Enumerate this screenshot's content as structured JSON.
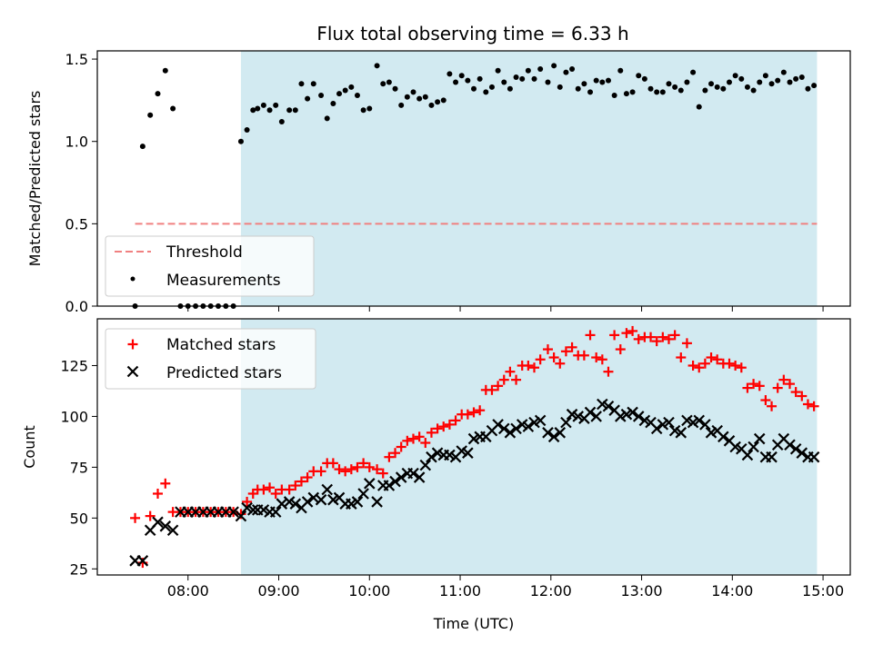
{
  "title": "Flux total observing time = 6.33 h",
  "colors": {
    "shade": "#add8e6",
    "threshold": "#f08080",
    "measurements": "#000000",
    "matched": "#ff0000",
    "predicted": "#000000"
  },
  "chart_data": [
    {
      "type": "scatter",
      "ylabel": "Matched/Predicted stars",
      "xlabel": "",
      "xlim": [
        "07:00",
        "15:18"
      ],
      "ylim": [
        0,
        1.55
      ],
      "x_ticks": [
        "08:00",
        "09:00",
        "10:00",
        "11:00",
        "12:00",
        "13:00",
        "14:00",
        "15:00"
      ],
      "y_ticks": [
        "0.0",
        "0.5",
        "1.0",
        "1.5"
      ],
      "shaded_interval": [
        "08:35",
        "14:56"
      ],
      "legend": {
        "placement": "lower-left",
        "threshold_label": "Threshold",
        "measurements_label": "Measurements"
      },
      "threshold": {
        "name": "Threshold",
        "y": 0.5,
        "x_range": [
          "07:25",
          "14:56"
        ]
      },
      "series": [
        {
          "name": "Measurements",
          "x": [
            "07:25",
            "07:30",
            "07:35",
            "07:40",
            "07:45",
            "07:50",
            "07:55",
            "08:00",
            "08:05",
            "08:10",
            "08:15",
            "08:20",
            "08:25",
            "08:30",
            "08:35",
            "08:39",
            "08:43",
            "08:46",
            "08:50",
            "08:54",
            "08:58",
            "09:02",
            "09:07",
            "09:11",
            "09:15",
            "09:19",
            "09:23",
            "09:28",
            "09:32",
            "09:36",
            "09:40",
            "09:44",
            "09:48",
            "09:52",
            "09:56",
            "10:00",
            "10:05",
            "10:09",
            "10:13",
            "10:17",
            "10:21",
            "10:25",
            "10:29",
            "10:33",
            "10:37",
            "10:41",
            "10:45",
            "10:49",
            "10:53",
            "10:57",
            "11:01",
            "11:05",
            "11:09",
            "11:13",
            "11:17",
            "11:21",
            "11:25",
            "11:29",
            "11:33",
            "11:37",
            "11:41",
            "11:45",
            "11:49",
            "11:53",
            "11:58",
            "12:02",
            "12:06",
            "12:10",
            "12:14",
            "12:18",
            "12:22",
            "12:26",
            "12:30",
            "12:34",
            "12:38",
            "12:42",
            "12:46",
            "12:50",
            "12:54",
            "12:58",
            "13:02",
            "13:06",
            "13:10",
            "13:14",
            "13:18",
            "13:22",
            "13:26",
            "13:30",
            "13:34",
            "13:38",
            "13:42",
            "13:46",
            "13:50",
            "13:54",
            "13:58",
            "14:02",
            "14:06",
            "14:10",
            "14:14",
            "14:18",
            "14:22",
            "14:26",
            "14:30",
            "14:34",
            "14:38",
            "14:42",
            "14:46",
            "14:50",
            "14:54"
          ],
          "y": [
            0.0,
            0.97,
            1.16,
            1.29,
            1.43,
            1.2,
            0.0,
            0.0,
            0.0,
            0.0,
            0.0,
            0.0,
            0.0,
            0.0,
            1.0,
            1.07,
            1.19,
            1.2,
            1.22,
            1.19,
            1.22,
            1.12,
            1.19,
            1.19,
            1.35,
            1.26,
            1.35,
            1.28,
            1.14,
            1.23,
            1.29,
            1.31,
            1.33,
            1.28,
            1.19,
            1.2,
            1.46,
            1.35,
            1.36,
            1.32,
            1.22,
            1.27,
            1.3,
            1.26,
            1.27,
            1.22,
            1.24,
            1.25,
            1.41,
            1.36,
            1.4,
            1.37,
            1.32,
            1.38,
            1.3,
            1.33,
            1.43,
            1.36,
            1.32,
            1.39,
            1.38,
            1.43,
            1.38,
            1.44,
            1.36,
            1.46,
            1.33,
            1.42,
            1.44,
            1.32,
            1.35,
            1.3,
            1.37,
            1.36,
            1.37,
            1.28,
            1.43,
            1.29,
            1.3,
            1.4,
            1.38,
            1.32,
            1.3,
            1.3,
            1.35,
            1.33,
            1.31,
            1.36,
            1.42,
            1.21,
            1.31,
            1.35,
            1.33,
            1.32,
            1.36,
            1.4,
            1.38,
            1.33,
            1.31,
            1.36,
            1.4,
            1.35,
            1.37,
            1.42,
            1.36,
            1.38,
            1.39,
            1.32,
            1.34
          ]
        }
      ]
    },
    {
      "type": "scatter",
      "ylabel": "Count",
      "xlabel": "Time (UTC)",
      "xlim": [
        "07:00",
        "15:18"
      ],
      "ylim": [
        22,
        148
      ],
      "x_ticks": [
        "08:00",
        "09:00",
        "10:00",
        "11:00",
        "12:00",
        "13:00",
        "14:00",
        "15:00"
      ],
      "y_ticks": [
        "25",
        "50",
        "75",
        "100",
        "125"
      ],
      "shaded_interval": [
        "08:35",
        "14:56"
      ],
      "legend": {
        "placement": "upper-left",
        "matched_label": "Matched stars",
        "predicted_label": "Predicted stars"
      },
      "series": [
        {
          "name": "Matched stars",
          "marker": "plus",
          "x": [
            "07:25",
            "07:30",
            "07:35",
            "07:40",
            "07:45",
            "07:50",
            "07:55",
            "08:00",
            "08:05",
            "08:10",
            "08:15",
            "08:20",
            "08:25",
            "08:30",
            "08:35",
            "08:39",
            "08:43",
            "08:46",
            "08:50",
            "08:54",
            "08:58",
            "09:02",
            "09:07",
            "09:11",
            "09:15",
            "09:19",
            "09:23",
            "09:28",
            "09:32",
            "09:36",
            "09:40",
            "09:44",
            "09:48",
            "09:52",
            "09:56",
            "10:00",
            "10:05",
            "10:09",
            "10:13",
            "10:17",
            "10:21",
            "10:25",
            "10:29",
            "10:33",
            "10:37",
            "10:41",
            "10:45",
            "10:49",
            "10:53",
            "10:57",
            "11:01",
            "11:05",
            "11:09",
            "11:13",
            "11:17",
            "11:21",
            "11:25",
            "11:29",
            "11:33",
            "11:37",
            "11:41",
            "11:45",
            "11:49",
            "11:53",
            "11:58",
            "12:02",
            "12:06",
            "12:10",
            "12:14",
            "12:18",
            "12:22",
            "12:26",
            "12:30",
            "12:34",
            "12:38",
            "12:42",
            "12:46",
            "12:50",
            "12:54",
            "12:58",
            "13:02",
            "13:06",
            "13:10",
            "13:14",
            "13:18",
            "13:22",
            "13:26",
            "13:30",
            "13:34",
            "13:38",
            "13:42",
            "13:46",
            "13:50",
            "13:54",
            "13:58",
            "14:02",
            "14:06",
            "14:10",
            "14:14",
            "14:18",
            "14:22",
            "14:26",
            "14:30",
            "14:34",
            "14:38",
            "14:42",
            "14:46",
            "14:50",
            "14:54"
          ],
          "y": [
            50,
            28,
            51,
            62,
            67,
            53,
            53,
            53,
            53,
            53,
            53,
            53,
            53,
            53,
            52,
            58,
            62,
            64,
            64,
            65,
            62,
            64,
            64,
            66,
            68,
            70,
            73,
            73,
            77,
            77,
            74,
            73,
            74,
            75,
            77,
            75,
            74,
            72,
            80,
            82,
            85,
            88,
            89,
            90,
            87,
            92,
            94,
            95,
            96,
            98,
            101,
            101,
            102,
            103,
            113,
            113,
            115,
            118,
            122,
            118,
            125,
            125,
            124,
            128,
            133,
            129,
            126,
            132,
            134,
            130,
            130,
            140,
            129,
            128,
            122,
            140,
            133,
            141,
            142,
            138,
            139,
            139,
            137,
            139,
            138,
            140,
            129,
            136,
            125,
            124,
            126,
            129,
            128,
            126,
            126,
            125,
            124,
            114,
            116,
            115,
            108,
            105,
            114,
            118,
            116,
            112,
            110,
            106,
            105
          ]
        },
        {
          "name": "Predicted stars",
          "marker": "x",
          "x": [
            "07:25",
            "07:30",
            "07:35",
            "07:40",
            "07:45",
            "07:50",
            "07:55",
            "08:00",
            "08:05",
            "08:10",
            "08:15",
            "08:20",
            "08:25",
            "08:30",
            "08:35",
            "08:39",
            "08:43",
            "08:46",
            "08:50",
            "08:54",
            "08:58",
            "09:02",
            "09:07",
            "09:11",
            "09:15",
            "09:19",
            "09:23",
            "09:28",
            "09:32",
            "09:36",
            "09:40",
            "09:44",
            "09:48",
            "09:52",
            "09:56",
            "10:00",
            "10:05",
            "10:09",
            "10:13",
            "10:17",
            "10:21",
            "10:25",
            "10:29",
            "10:33",
            "10:37",
            "10:41",
            "10:45",
            "10:49",
            "10:53",
            "10:57",
            "11:01",
            "11:05",
            "11:09",
            "11:13",
            "11:17",
            "11:21",
            "11:25",
            "11:29",
            "11:33",
            "11:37",
            "11:41",
            "11:45",
            "11:49",
            "11:53",
            "11:58",
            "12:02",
            "12:06",
            "12:10",
            "12:14",
            "12:18",
            "12:22",
            "12:26",
            "12:30",
            "12:34",
            "12:38",
            "12:42",
            "12:46",
            "12:50",
            "12:54",
            "12:58",
            "13:02",
            "13:06",
            "13:10",
            "13:14",
            "13:18",
            "13:22",
            "13:26",
            "13:30",
            "13:34",
            "13:38",
            "13:42",
            "13:46",
            "13:50",
            "13:54",
            "13:58",
            "14:02",
            "14:06",
            "14:10",
            "14:14",
            "14:18",
            "14:22",
            "14:26",
            "14:30",
            "14:34",
            "14:38",
            "14:42",
            "14:46",
            "14:50",
            "14:54"
          ],
          "y": [
            29,
            29,
            44,
            48,
            46,
            44,
            53,
            53,
            53,
            53,
            53,
            53,
            53,
            53,
            51,
            55,
            54,
            54,
            54,
            53,
            53,
            57,
            58,
            57,
            55,
            58,
            60,
            59,
            64,
            59,
            60,
            57,
            57,
            58,
            62,
            67,
            58,
            66,
            66,
            68,
            70,
            72,
            72,
            70,
            76,
            80,
            82,
            81,
            81,
            80,
            83,
            82,
            89,
            90,
            90,
            93,
            96,
            94,
            92,
            94,
            96,
            95,
            97,
            98,
            92,
            90,
            92,
            97,
            101,
            100,
            99,
            102,
            100,
            106,
            105,
            103,
            100,
            101,
            102,
            100,
            98,
            97,
            94,
            96,
            97,
            93,
            92,
            98,
            97,
            98,
            96,
            92,
            93,
            90,
            88,
            85,
            84,
            81,
            85,
            89,
            80,
            80,
            86,
            89,
            86,
            84,
            82,
            80,
            80
          ]
        }
      ]
    }
  ]
}
